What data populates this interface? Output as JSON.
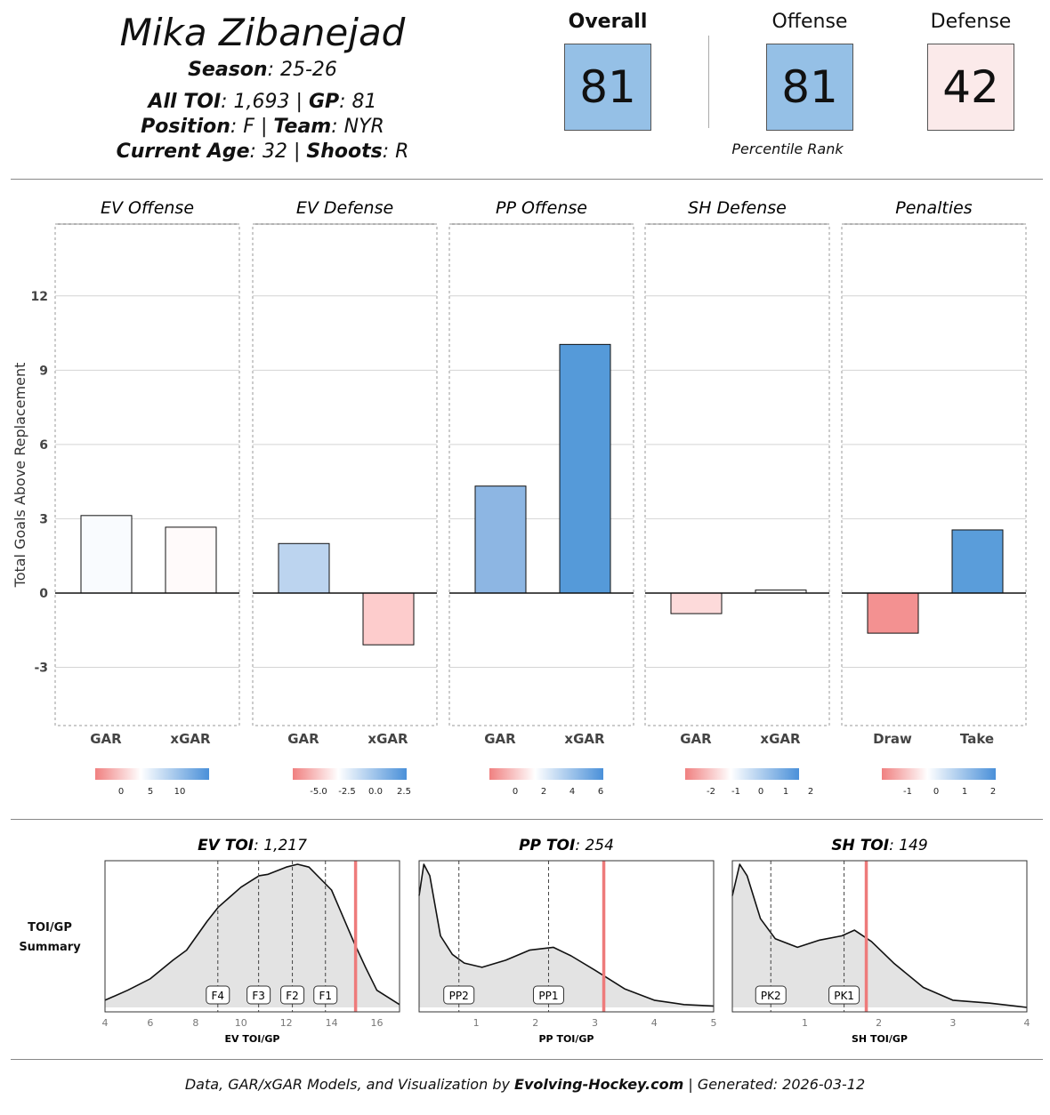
{
  "header": {
    "player_name": "Mika Zibanejad",
    "season_label": "Season",
    "season": "25-26",
    "toi_label": "All TOI",
    "toi": "1,693",
    "gp_label": "GP",
    "gp": "81",
    "position_label": "Position",
    "position": "F",
    "team_label": "Team",
    "team": "NYR",
    "age_label": "Current Age",
    "age": "32",
    "shoots_label": "Shoots",
    "shoots": "R"
  },
  "ranks": {
    "overall_label": "Overall",
    "overall": "81",
    "offense_label": "Offense",
    "offense": "81",
    "defense_label": "Defense",
    "defense": "42",
    "caption": "Percentile Rank",
    "colors": {
      "overall": "#95c0e6",
      "offense": "#95c0e6",
      "defense": "#fbeaea"
    }
  },
  "chart_data": [
    {
      "type": "bar",
      "ylabel": "Total Goals Above Replacement",
      "ylim": [
        -5.35,
        14.9
      ],
      "yticks": [
        -3,
        0,
        3,
        6,
        9,
        12
      ],
      "panels": [
        {
          "title": "EV Offense",
          "categories": [
            "GAR",
            "xGAR"
          ],
          "values": [
            3.13,
            2.66
          ],
          "colors": [
            "#f9fbfe",
            "#fffafa"
          ],
          "legend_ticks": [
            "0",
            "5",
            "10"
          ]
        },
        {
          "title": "EV Defense",
          "categories": [
            "GAR",
            "xGAR"
          ],
          "values": [
            2.0,
            -2.09
          ],
          "colors": [
            "#bcd4ef",
            "#fdcccc"
          ],
          "legend_ticks": [
            "-5.0",
            "-2.5",
            "0.0",
            "2.5"
          ]
        },
        {
          "title": "PP Offense",
          "categories": [
            "GAR",
            "xGAR"
          ],
          "values": [
            4.32,
            10.04
          ],
          "colors": [
            "#8db6e3",
            "#559ad9"
          ],
          "legend_ticks": [
            "0",
            "2",
            "4",
            "6"
          ]
        },
        {
          "title": "SH Defense",
          "categories": [
            "GAR",
            "xGAR"
          ],
          "values": [
            -0.83,
            0.12
          ],
          "colors": [
            "#fddada",
            "#fefefe"
          ],
          "legend_ticks": [
            "-2",
            "-1",
            "0",
            "1",
            "2"
          ]
        },
        {
          "title": "Penalties",
          "categories": [
            "Draw",
            "Take"
          ],
          "values": [
            -1.62,
            2.55
          ],
          "colors": [
            "#f39191",
            "#5a9dda"
          ],
          "legend_ticks": [
            "-1",
            "0",
            "1",
            "2"
          ]
        }
      ]
    },
    {
      "type": "area",
      "side_label": "TOI/GP Summary",
      "panels": [
        {
          "title_label": "EV TOI",
          "title_value": "1,217",
          "xlabel": "EV TOI/GP",
          "xlim": [
            4,
            17
          ],
          "xticks": [
            "4",
            "6",
            "8",
            "10",
            "12",
            "14",
            "16"
          ],
          "player_value": 15.06,
          "markers": [
            {
              "label": "F4",
              "x": 8.98
            },
            {
              "label": "F3",
              "x": 10.78
            },
            {
              "label": "F2",
              "x": 12.27
            },
            {
              "label": "F1",
              "x": 13.73
            }
          ],
          "density": [
            [
              4,
              0.05
            ],
            [
              5,
              0.12
            ],
            [
              6,
              0.2
            ],
            [
              7,
              0.33
            ],
            [
              7.6,
              0.4
            ],
            [
              8.5,
              0.6
            ],
            [
              9,
              0.7
            ],
            [
              10,
              0.84
            ],
            [
              10.8,
              0.92
            ],
            [
              11.2,
              0.93
            ],
            [
              12,
              0.98
            ],
            [
              12.5,
              1.0
            ],
            [
              13,
              0.98
            ],
            [
              14,
              0.82
            ],
            [
              15,
              0.45
            ],
            [
              15.5,
              0.28
            ],
            [
              16,
              0.12
            ],
            [
              17,
              0.02
            ]
          ]
        },
        {
          "title_label": "PP TOI",
          "title_value": "254",
          "xlabel": "PP TOI/GP",
          "xlim": [
            0.04,
            5
          ],
          "xticks": [
            "1",
            "2",
            "3",
            "4",
            "5"
          ],
          "player_value": 3.15,
          "markers": [
            {
              "label": "PP2",
              "x": 0.71
            },
            {
              "label": "PP1",
              "x": 2.22
            }
          ],
          "density": [
            [
              0.04,
              0.78
            ],
            [
              0.12,
              1.0
            ],
            [
              0.22,
              0.92
            ],
            [
              0.4,
              0.5
            ],
            [
              0.6,
              0.37
            ],
            [
              0.8,
              0.31
            ],
            [
              1.1,
              0.28
            ],
            [
              1.5,
              0.33
            ],
            [
              1.9,
              0.4
            ],
            [
              2.3,
              0.42
            ],
            [
              2.6,
              0.36
            ],
            [
              3,
              0.26
            ],
            [
              3.5,
              0.13
            ],
            [
              4,
              0.05
            ],
            [
              4.5,
              0.02
            ],
            [
              5,
              0.01
            ]
          ]
        },
        {
          "title_label": "SH TOI",
          "title_value": "149",
          "xlabel": "SH TOI/GP",
          "xlim": [
            0.02,
            4
          ],
          "xticks": [
            "1",
            "2",
            "3",
            "4"
          ],
          "player_value": 1.83,
          "markers": [
            {
              "label": "PK2",
              "x": 0.54
            },
            {
              "label": "PK1",
              "x": 1.53
            }
          ],
          "density": [
            [
              0.02,
              0.78
            ],
            [
              0.12,
              1.0
            ],
            [
              0.22,
              0.92
            ],
            [
              0.4,
              0.62
            ],
            [
              0.6,
              0.48
            ],
            [
              0.9,
              0.42
            ],
            [
              1.2,
              0.47
            ],
            [
              1.5,
              0.5
            ],
            [
              1.67,
              0.54
            ],
            [
              1.9,
              0.46
            ],
            [
              2.2,
              0.31
            ],
            [
              2.6,
              0.14
            ],
            [
              3,
              0.05
            ],
            [
              3.5,
              0.03
            ],
            [
              4,
              0.0
            ]
          ]
        }
      ]
    }
  ],
  "footer": {
    "prefix": "Data, GAR/xGAR Models, and Visualization by ",
    "brand": "Evolving-Hockey.com",
    "suffix": " | Generated: 2026-03-12"
  }
}
